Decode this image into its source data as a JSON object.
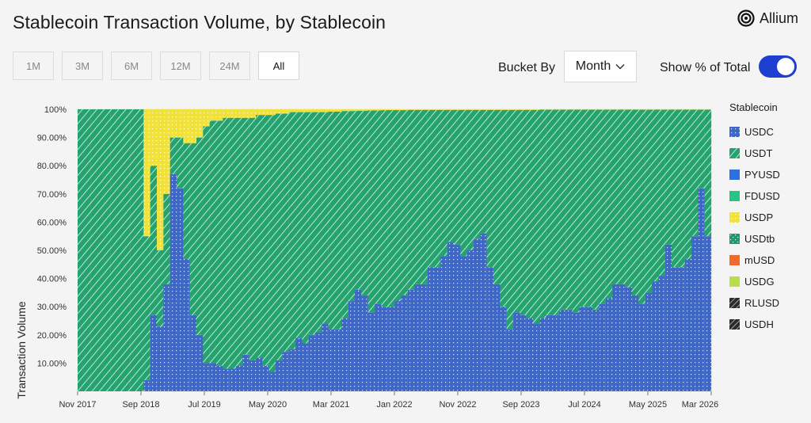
{
  "header": {
    "title": "Stablecoin Transaction Volume, by Stablecoin",
    "brand": "Allium"
  },
  "controls": {
    "ranges": [
      "1M",
      "3M",
      "6M",
      "12M",
      "24M",
      "All"
    ],
    "active_range": "All",
    "bucket_label": "Bucket By",
    "bucket_value": "Month",
    "show_pct_label": "Show % of Total",
    "show_pct_on": true
  },
  "colors": {
    "USDC": "#3f68c6",
    "USDT": "#25a36f",
    "PYUSD": "#2f6fe0",
    "FDUSD": "#27c48a",
    "USDP": "#f0e23a",
    "USDtb": "#1e9a68",
    "mUSD": "#f06a2a",
    "USDG": "#b6df4a",
    "RLUSD": "#2d2d2d",
    "USDH": "#2d2d2d"
  },
  "chart_data": {
    "type": "bar",
    "stacked": true,
    "percent_of_total": true,
    "ylabel": "Transaction Volume",
    "ylim": [
      0,
      100
    ],
    "y_ticks": [
      "10.00%",
      "20.00%",
      "30.00%",
      "40.00%",
      "50.00%",
      "60.00%",
      "70.00%",
      "80.00%",
      "90.00%",
      "100%"
    ],
    "x_ticks": [
      "Nov 2017",
      "Sep 2018",
      "Jul 2019",
      "May 2020",
      "Mar 2021",
      "Jan 2022",
      "Nov 2022",
      "Sep 2023",
      "Jul 2024",
      "May 2025",
      "Mar 2026"
    ],
    "legend_title": "Stablecoin",
    "legend": [
      "USDC",
      "USDT",
      "PYUSD",
      "FDUSD",
      "USDP",
      "USDtb",
      "mUSD",
      "USDG",
      "RLUSD",
      "USDH"
    ],
    "period": "Nov 2017 - Mar 2026 (monthly)",
    "usdc_pct": [
      0,
      0,
      0,
      0,
      0,
      0,
      0,
      0,
      0,
      0,
      4,
      27,
      23,
      38,
      77,
      72,
      47,
      27,
      20,
      10,
      10,
      9,
      8,
      8,
      9,
      13,
      11,
      12,
      9,
      7,
      11,
      14,
      15,
      19,
      17,
      20,
      21,
      24,
      22,
      22,
      26,
      32,
      36,
      34,
      28,
      31,
      30,
      30,
      32,
      34,
      36,
      38,
      38,
      44,
      44,
      48,
      53,
      52,
      48,
      50,
      54,
      56,
      44,
      38,
      30,
      22,
      28,
      27,
      26,
      24,
      26,
      27,
      27,
      29,
      29,
      28,
      30,
      30,
      29,
      31,
      33,
      38,
      38,
      37,
      34,
      31,
      35,
      39,
      41,
      52,
      44,
      44,
      47,
      55,
      72,
      55
    ],
    "yellow_pct": [
      0,
      0,
      0,
      0,
      0,
      0,
      0,
      0,
      0,
      0,
      45,
      20,
      50,
      30,
      10,
      10,
      12,
      12,
      10,
      6,
      4,
      4,
      3,
      3,
      3,
      3,
      3,
      2,
      2,
      2,
      1.5,
      1.5,
      1,
      1,
      1,
      1,
      1,
      1,
      0.8,
      0.8,
      0.6,
      0.6,
      0.5,
      0.5,
      0.4,
      0.4,
      0.3,
      0.3,
      0.3,
      0.3,
      0.2,
      0.2,
      0.2,
      0.2,
      0.2,
      0.2,
      0.2,
      0.2,
      0.2,
      0.2,
      0.2,
      0.2,
      0.2,
      0.2,
      0.2,
      0.2,
      0.2,
      0.2,
      0.2,
      0.2,
      0.1,
      0.1,
      0.1,
      0.1,
      0.1,
      0.1,
      0.1,
      0.1,
      0.1,
      0.1,
      0.1,
      0.1,
      0.1,
      0.1,
      0.1,
      0.1,
      0.1,
      0.1,
      0.1,
      0.1,
      0.1,
      0.1,
      0.1,
      0.1,
      0.1,
      0.1
    ]
  }
}
